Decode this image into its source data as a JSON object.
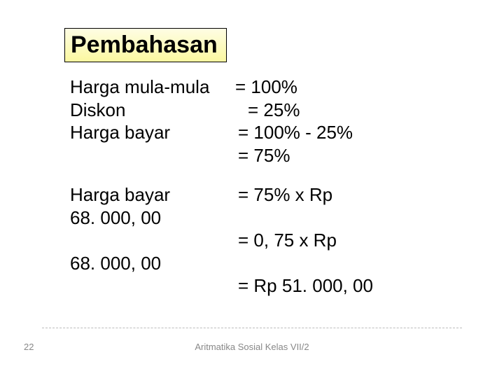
{
  "title": "Pembahasan",
  "title_box": {
    "bg_gradient_top": "#fefde4",
    "bg_gradient_bottom": "#fbf8a0",
    "border_color": "#000000"
  },
  "rows": [
    {
      "label": "Harga mula-mula",
      "label_width": 236,
      "value": "= 100%"
    },
    {
      "label": "Diskon",
      "label_width": 254,
      "value": "= 25%"
    },
    {
      "label": "Harga bayar",
      "label_width": 240,
      "value": "= 100% - 25%"
    },
    {
      "label": "",
      "label_width": 240,
      "value": "= 75%"
    }
  ],
  "rows2": [
    {
      "label": "Harga bayar",
      "label_width": 240,
      "value": "= 75% x Rp"
    },
    {
      "label": "68. 000, 00",
      "label_width": 240,
      "value": ""
    },
    {
      "label": "",
      "label_width": 240,
      "value": "= 0, 75 x Rp"
    },
    {
      "label": "68. 000, 00",
      "label_width": 240,
      "value": ""
    },
    {
      "label": "",
      "label_width": 240,
      "value": "= Rp 51. 000, 00"
    }
  ],
  "gap_after_rows": 24,
  "footer": {
    "page_number": "22",
    "text": "Aritmatika Sosial Kelas VII/2",
    "rule_color": "#bbbbbb",
    "text_color": "#888888"
  },
  "body_fontsize": 26,
  "title_fontsize": 34
}
